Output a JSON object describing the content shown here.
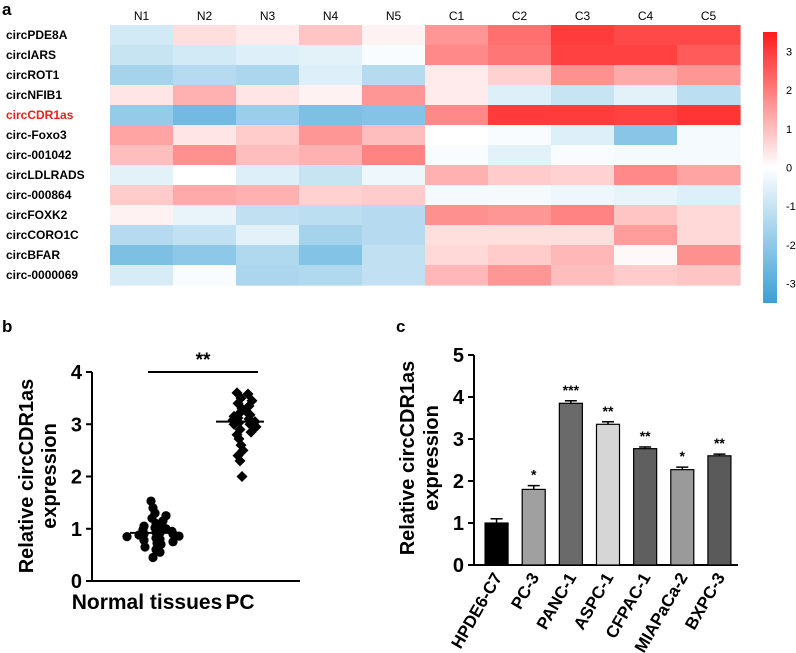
{
  "panel_labels": {
    "a": "a",
    "b": "b",
    "c": "c"
  },
  "chart_data": [
    {
      "type": "heatmap",
      "panel": "a",
      "columns": [
        "N1",
        "N2",
        "N3",
        "N4",
        "N5",
        "C1",
        "C2",
        "C3",
        "C4",
        "C5"
      ],
      "rows": [
        "circPDE8A",
        "circIARS",
        "circROT1",
        "circNFIB1",
        "circCDR1as",
        "circ-Foxo3",
        "circ-001042",
        "circLDLRADS",
        "circ-000864",
        "circFOXK2",
        "circCORO1C",
        "circBFAR",
        "circ-0000069"
      ],
      "highlight_row": "circCDR1as",
      "highlight_color": "#e8201c",
      "values": [
        [
          -0.8,
          0.5,
          0.3,
          0.9,
          0.2,
          1.6,
          2.2,
          3.0,
          2.8,
          2.8
        ],
        [
          -1.0,
          -0.8,
          -0.6,
          -0.5,
          -0.1,
          1.8,
          2.1,
          2.9,
          2.9,
          2.5
        ],
        [
          -1.6,
          -1.3,
          -1.5,
          -0.6,
          -1.3,
          0.3,
          0.7,
          1.7,
          1.3,
          1.6
        ],
        [
          0.4,
          1.2,
          0.4,
          0.2,
          1.6,
          0.3,
          -0.6,
          -1.0,
          -0.5,
          -1.2
        ],
        [
          -1.9,
          -2.5,
          -1.8,
          -2.3,
          -2.2,
          1.8,
          3.0,
          3.0,
          2.9,
          3.1
        ],
        [
          1.4,
          0.4,
          0.8,
          1.6,
          1.0,
          0.0,
          -0.1,
          -0.6,
          -2.1,
          -0.2
        ],
        [
          1.0,
          1.7,
          1.0,
          1.2,
          1.9,
          -0.1,
          -0.5,
          -0.1,
          -0.2,
          -0.2
        ],
        [
          -0.5,
          0.0,
          -0.6,
          -1.0,
          -0.3,
          1.2,
          0.8,
          0.7,
          1.8,
          1.4
        ],
        [
          0.8,
          1.3,
          1.2,
          0.7,
          0.8,
          -0.2,
          -0.2,
          -0.3,
          -0.4,
          -0.6
        ],
        [
          0.2,
          -0.4,
          -1.1,
          -1.2,
          -1.3,
          1.7,
          1.6,
          1.9,
          0.9,
          0.6
        ],
        [
          -1.3,
          -1.1,
          -0.5,
          -1.6,
          -1.3,
          0.5,
          0.5,
          0.5,
          1.5,
          0.6
        ],
        [
          -2.3,
          -2.0,
          -1.4,
          -2.2,
          -1.1,
          0.6,
          0.8,
          1.1,
          0.1,
          1.7
        ],
        [
          -0.7,
          -0.1,
          -1.5,
          -1.4,
          -1.1,
          1.1,
          1.6,
          1.0,
          0.8,
          0.9
        ]
      ],
      "colorbar": {
        "ticks": [
          "3",
          "2",
          "1",
          "0",
          "-1",
          "-2",
          "-3"
        ],
        "min": -3.5,
        "max": 3.5,
        "low_color": "#3a9fd6",
        "mid_color": "#ffffff",
        "high_color": "#ff1a1a"
      }
    },
    {
      "type": "scatter",
      "panel": "b",
      "ylabel_line1": "Relative circCDR1as",
      "ylabel_line2": "expression",
      "ylim": [
        0,
        4
      ],
      "yticks": [
        "0",
        "1",
        "2",
        "3",
        "4"
      ],
      "groups": [
        {
          "name": "Normal tissues",
          "marker": "circle",
          "mean": 0.92,
          "values": [
            1.53,
            1.4,
            1.3,
            1.25,
            1.2,
            1.15,
            1.1,
            1.08,
            1.05,
            1.02,
            1.0,
            0.98,
            0.95,
            0.93,
            0.92,
            0.9,
            0.9,
            0.88,
            0.86,
            0.85,
            0.82,
            0.8,
            0.78,
            0.75,
            0.72,
            0.7,
            0.65,
            0.6,
            0.55,
            0.45
          ]
        },
        {
          "name": "PC",
          "marker": "diamond",
          "mean": 3.05,
          "values": [
            3.6,
            3.58,
            3.5,
            3.45,
            3.4,
            3.35,
            3.3,
            3.25,
            3.2,
            3.18,
            3.15,
            3.12,
            3.1,
            3.08,
            3.05,
            3.03,
            3.0,
            3.0,
            2.95,
            2.9,
            2.85,
            2.8,
            2.72,
            2.6,
            2.5,
            2.4,
            2.3,
            2.0
          ]
        }
      ],
      "significance": "**"
    },
    {
      "type": "bar",
      "panel": "c",
      "ylabel_line1": "Relative circCDR1as",
      "ylabel_line2": "expression",
      "ylim": [
        0,
        5
      ],
      "yticks": [
        "0",
        "1",
        "2",
        "3",
        "4",
        "5"
      ],
      "categories": [
        "HPDE6-C7",
        "PC-3",
        "PANC-1",
        "ASPC-1",
        "CFPAC-1",
        "MIAPaCa-2",
        "BXPC-3"
      ],
      "values": [
        1.0,
        1.8,
        3.85,
        3.35,
        2.77,
        2.27,
        2.6
      ],
      "errors": [
        0.1,
        0.09,
        0.06,
        0.06,
        0.04,
        0.06,
        0.04
      ],
      "significance": [
        "",
        "*",
        "***",
        "**",
        "**",
        "*",
        "**"
      ],
      "colors": [
        "#000000",
        "#a0a0a0",
        "#6a6a6a",
        "#d6d6d6",
        "#5f5f5f",
        "#9a9a9a",
        "#5a5a5a"
      ]
    }
  ]
}
